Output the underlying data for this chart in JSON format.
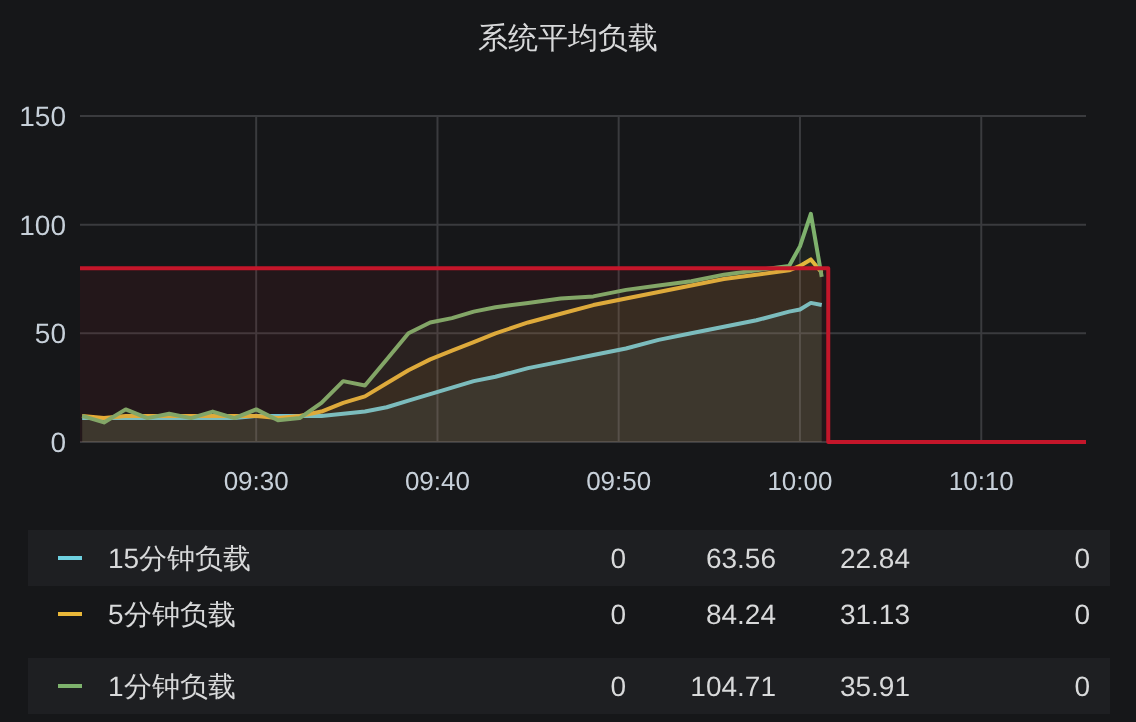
{
  "chart_data": {
    "type": "area",
    "title": "系统平均负载",
    "x": [
      9.34,
      9.36,
      9.38,
      9.4,
      9.42,
      9.44,
      9.46,
      9.48,
      9.5,
      9.52,
      9.54,
      9.56,
      9.58,
      9.6,
      9.62,
      9.64,
      9.66,
      9.68,
      9.7,
      9.72,
      9.75,
      9.78,
      9.81,
      9.84,
      9.87,
      9.9,
      9.93,
      9.96,
      9.99,
      10.0,
      10.01,
      10.02
    ],
    "series": [
      {
        "name": "15分钟负载",
        "color": "#6ed0e0",
        "values": [
          11,
          11,
          11,
          11,
          11,
          11,
          11,
          11,
          12,
          12,
          12,
          12,
          13,
          14,
          16,
          19,
          22,
          25,
          28,
          30,
          34,
          37,
          40,
          43,
          47,
          50,
          53,
          56,
          60,
          61,
          64,
          63
        ]
      },
      {
        "name": "5分钟负载",
        "color": "#eab839",
        "values": [
          12,
          11,
          12,
          12,
          12,
          12,
          12,
          12,
          12,
          11,
          12,
          14,
          18,
          21,
          27,
          33,
          38,
          42,
          46,
          50,
          55,
          59,
          63,
          66,
          69,
          72,
          75,
          77,
          79,
          81,
          84,
          78
        ]
      },
      {
        "name": "1分钟负载",
        "color": "#7eb26d",
        "values": [
          12,
          9,
          15,
          11,
          13,
          11,
          14,
          11,
          15,
          10,
          11,
          18,
          28,
          26,
          38,
          50,
          55,
          57,
          60,
          62,
          64,
          66,
          67,
          70,
          72,
          74,
          77,
          79,
          81,
          90,
          105,
          76
        ]
      },
      {
        "type": "step",
        "color": "#c4162a",
        "x": [
          9.338,
          10.026,
          10.263
        ],
        "values": [
          80,
          0,
          0
        ]
      }
    ],
    "xlim": [
      9.338,
      10.263
    ],
    "xticks": [
      {
        "value": 9.5,
        "label": "09:30"
      },
      {
        "value": 9.6667,
        "label": "09:40"
      },
      {
        "value": 9.8333,
        "label": "09:50"
      },
      {
        "value": 10.0,
        "label": "10:00"
      },
      {
        "value": 10.1667,
        "label": "10:10"
      }
    ],
    "ylim": [
      0,
      150
    ],
    "yticks": [
      0,
      50,
      100,
      150
    ],
    "grid": true,
    "legend": "bottom",
    "annotations": [
      "0",
      "63.56",
      "22.84",
      "0",
      "0",
      "84.24",
      "31.13",
      "0",
      "0",
      "104.71",
      "35.91",
      "0"
    ]
  }
}
